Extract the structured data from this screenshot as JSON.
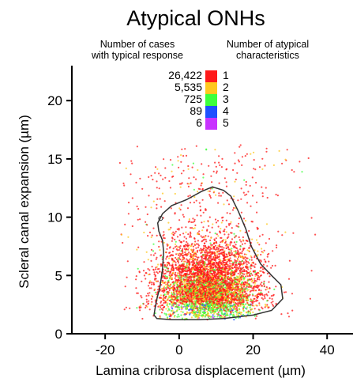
{
  "chart_data": {
    "type": "scatter",
    "title": "Atypical ONHs",
    "xlabel": "Lamina cribrosa displacement (µm)",
    "ylabel": "Scleral canal expansion (µm)",
    "xlim": [
      -29,
      47
    ],
    "ylim": [
      0,
      23
    ],
    "xticks": [
      -20,
      0,
      20,
      40
    ],
    "yticks": [
      0,
      5,
      10,
      15,
      20
    ],
    "grid": false,
    "legend": {
      "placement": "top-center",
      "header_left": [
        "Number of cases",
        "with typical response"
      ],
      "header_right": [
        "Number of atypical",
        "characteristics"
      ],
      "entries": [
        {
          "count": "26,422",
          "characteristics": "1",
          "color": "#ff1a1a"
        },
        {
          "count": "5,535",
          "characteristics": "2",
          "color": "#ffc81e"
        },
        {
          "count": "725",
          "characteristics": "3",
          "color": "#3cff3c"
        },
        {
          "count": "89",
          "characteristics": "4",
          "color": "#1e50ff"
        },
        {
          "count": "6",
          "characteristics": "5",
          "color": "#c832ff"
        }
      ]
    },
    "contour": {
      "color": "#333333",
      "points": [
        [
          -6,
          1.3
        ],
        [
          -2,
          1.2
        ],
        [
          5,
          1.2
        ],
        [
          12,
          1.3
        ],
        [
          20,
          1.6
        ],
        [
          25,
          2
        ],
        [
          28,
          3
        ],
        [
          27.5,
          4.2
        ],
        [
          25,
          5
        ],
        [
          22,
          6
        ],
        [
          19.5,
          7.5
        ],
        [
          18,
          9
        ],
        [
          16,
          10.5
        ],
        [
          14,
          11.8
        ],
        [
          12,
          12.3
        ],
        [
          9,
          12.6
        ],
        [
          6,
          12.2
        ],
        [
          2,
          11.5
        ],
        [
          -2,
          11
        ],
        [
          -4.5,
          10.3
        ],
        [
          -5.8,
          9.5
        ],
        [
          -5.5,
          8.8
        ],
        [
          -4.5,
          8
        ],
        [
          -4.2,
          7
        ],
        [
          -4.5,
          5.5
        ],
        [
          -5.2,
          4
        ],
        [
          -6,
          3
        ],
        [
          -6.5,
          2.2
        ],
        [
          -6.8,
          1.6
        ],
        [
          -6,
          1.3
        ]
      ]
    },
    "density_center": {
      "x": 8,
      "y": 4.5
    },
    "annotation_point": {
      "x": -5,
      "y": 9.9
    }
  }
}
